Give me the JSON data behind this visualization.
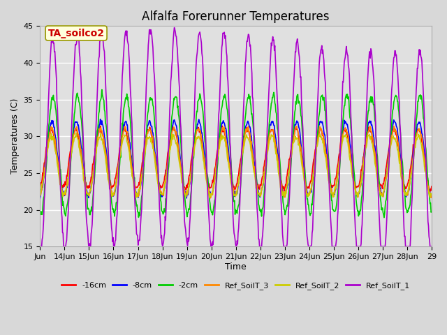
{
  "title": "Alfalfa Forerunner Temperatures",
  "xlabel": "Time",
  "ylabel": "Temperatures (C)",
  "ylim": [
    15,
    45
  ],
  "yticks": [
    15,
    20,
    25,
    30,
    35,
    40,
    45
  ],
  "annotation_text": "TA_soilco2",
  "annotation_color": "#cc0000",
  "annotation_bg": "#ffffdd",
  "annotation_border": "#999900",
  "series": [
    {
      "label": "-16cm",
      "color": "#ff0000",
      "lw": 1.2
    },
    {
      "label": "-8cm",
      "color": "#0000ff",
      "lw": 1.2
    },
    {
      "label": "-2cm",
      "color": "#00cc00",
      "lw": 1.2
    },
    {
      "label": "Ref_SoilT_3",
      "color": "#ff8800",
      "lw": 1.2
    },
    {
      "label": "Ref_SoilT_2",
      "color": "#cccc00",
      "lw": 1.2
    },
    {
      "label": "Ref_SoilT_1",
      "color": "#aa00cc",
      "lw": 1.2
    }
  ],
  "x_tick_labels": [
    "Jun",
    "14Jun",
    "15Jun",
    "16Jun",
    "17Jun",
    "18Jun",
    "19Jun",
    "20Jun",
    "21Jun",
    "22Jun",
    "23Jun",
    "24Jun",
    "25Jun",
    "26Jun",
    "27Jun",
    "28Jun",
    "29"
  ],
  "fig_bg": "#d8d8d8",
  "plot_bg": "#e0e0e0",
  "legend_fontsize": 8,
  "tick_fontsize": 8,
  "title_fontsize": 12
}
